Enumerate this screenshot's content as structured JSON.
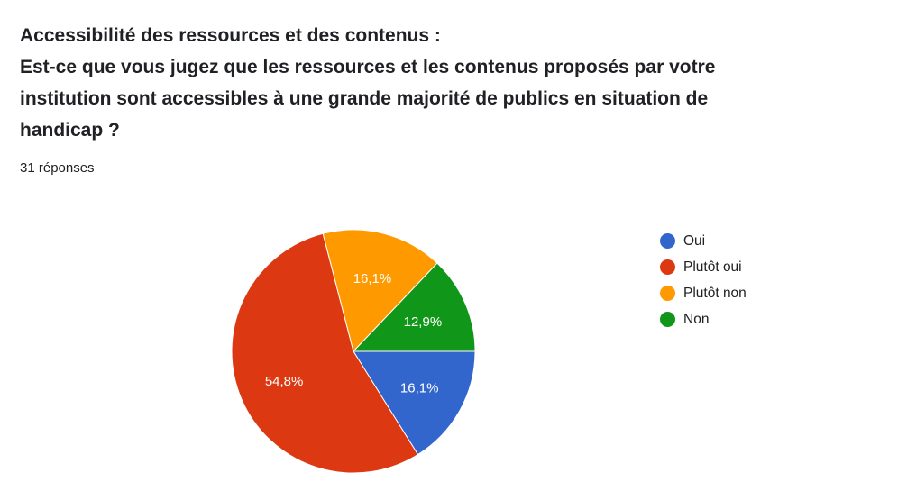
{
  "header": {
    "title_lines": [
      "Accessibilité des ressources et des contenus :",
      "Est-ce que vous jugez que les ressources et les contenus proposés par votre",
      "institution sont accessibles à une grande majorité de publics en situation de",
      "handicap ?"
    ],
    "response_count": "31 réponses"
  },
  "chart_data": {
    "type": "pie",
    "categories": [
      "Oui",
      "Plutôt oui",
      "Plutôt non",
      "Non"
    ],
    "values": [
      16.1,
      54.8,
      16.1,
      12.9
    ],
    "labels": [
      "16,1%",
      "54,8%",
      "16,1%",
      "12,9%"
    ],
    "colors": [
      "#3366cc",
      "#dc3912",
      "#ff9900",
      "#109618"
    ],
    "legend_position": "right",
    "start_angle_deg": 90
  }
}
